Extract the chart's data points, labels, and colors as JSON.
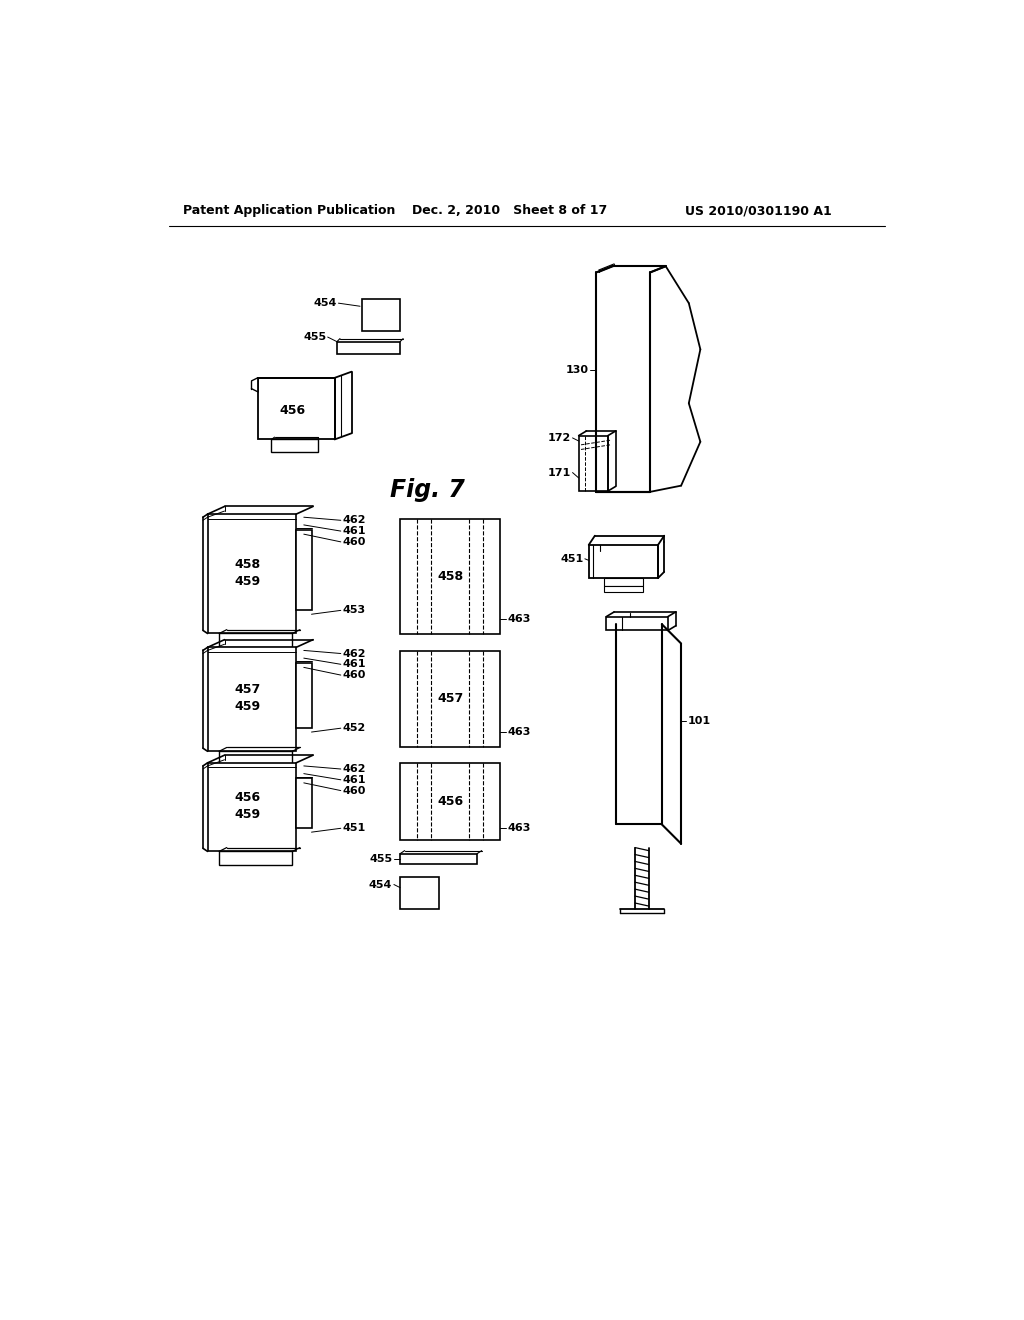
{
  "title_left": "Patent Application Publication",
  "title_center": "Dec. 2, 2010   Sheet 8 of 17",
  "title_right": "US 2010/0301190 A1",
  "fig_label": "Fig. 7",
  "background_color": "#ffffff"
}
